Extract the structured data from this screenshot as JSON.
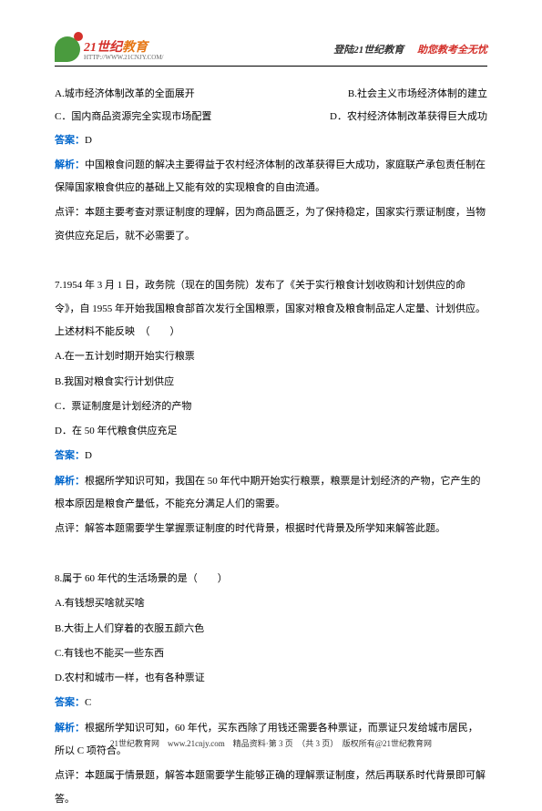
{
  "header": {
    "logo_main": "21世纪",
    "logo_suffix": "教育",
    "logo_url": "HTTP://WWW.21CNJY.COM/",
    "right_part1": "登陆21世纪教育",
    "right_part2": "助您教考全无忧"
  },
  "body": {
    "opt_a": "A.城市经济体制改革的全面展开",
    "opt_b": "B.社会主义市场经济体制的建立",
    "opt_c": "C．国内商品资源完全实现市场配置",
    "opt_d": "D．农村经济体制改革获得巨大成功",
    "ans6_label": "答案：",
    "ans6_value": "D",
    "ana6_label": "解析：",
    "ana6_text": "中国粮食问题的解决主要得益于农村经济体制的改革获得巨大成功，家庭联产承包责任制在保障国家粮食供应的基础上又能有效的实现粮食的自由流通。",
    "note6": "点评：本题主要考查对票证制度的理解，因为商品匮乏，为了保持稳定，国家实行票证制度，当物资供应充足后，就不必需要了。",
    "q7": "7.1954 年 3 月 1 日，政务院（现在的国务院）发布了《关于实行粮食计划收购和计划供应的命令》，自 1955 年开始我国粮食部首次发行全国粮票，国家对粮食及粮食制品定人定量、计划供应。　上述材料不能反映　（　　）",
    "q7a": "A.在一五计划时期开始实行粮票",
    "q7b": "B.我国对粮食实行计划供应",
    "q7c": "C．票证制度是计划经济的产物",
    "q7d": "D．在 50 年代粮食供应充足",
    "ans7_label": "答案：",
    "ans7_value": "D",
    "ana7_label": "解析：",
    "ana7_text": "根据所学知识可知，我国在 50 年代中期开始实行粮票，粮票是计划经济的产物，它产生的根本原因是粮食产量低，不能充分满足人们的需要。",
    "note7": "点评：解答本题需要学生掌握票证制度的时代背景，根据时代背景及所学知来解答此题。",
    "q8": "8.属于 60 年代的生活场景的是（　　）",
    "q8a": "A.有钱想买啥就买啥",
    "q8b": "B.大街上人们穿着的衣服五颜六色",
    "q8c": "C.有钱也不能买一些东西",
    "q8d": "D.农村和城市一样，也有各种票证",
    "ans8_label": "答案：",
    "ans8_value": "C",
    "ana8_label": "解析：",
    "ana8_text": "根据所学知识可知，60 年代，买东西除了用钱还需要各种票证，而票证只发给城市居民，所以 C 项符合。",
    "note8": "点评：本题属于情景题，解答本题需要学生能够正确的理解票证制度，然后再联系时代背景即可解答。"
  },
  "footer": {
    "text": "21世纪教育网　www.21cnjy.com　精品资料·第 3 页　（共 3 页）　版权所有@21世纪教育网"
  }
}
